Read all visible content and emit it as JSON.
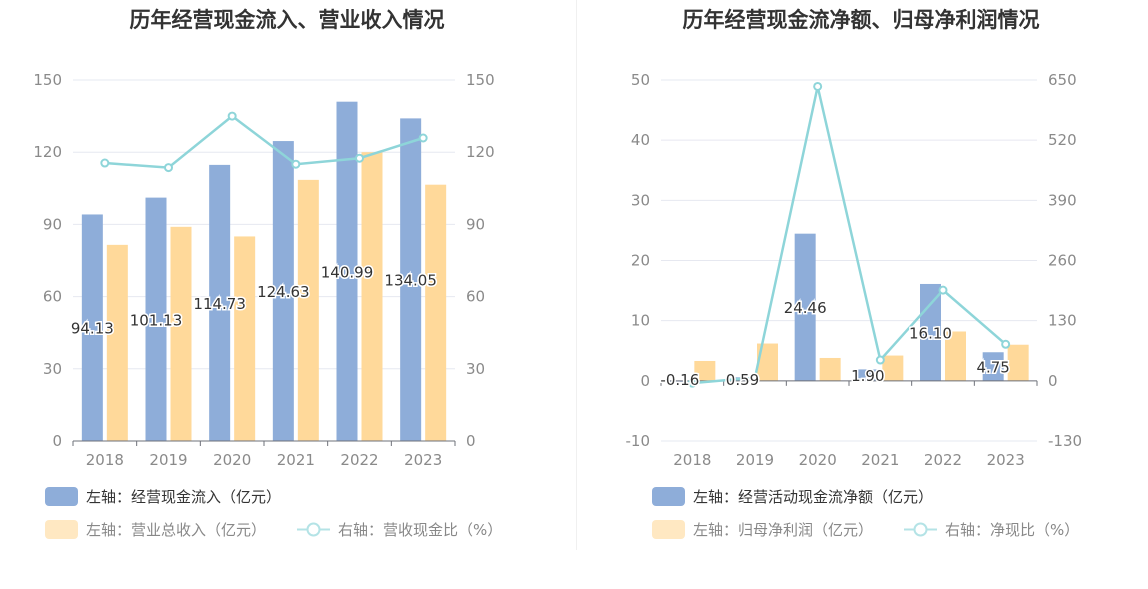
{
  "chart_data": [
    {
      "type": "bar",
      "title": "历年经营现金流入、营业收入情况",
      "categories": [
        "2018",
        "2019",
        "2020",
        "2021",
        "2022",
        "2023"
      ],
      "y_left": {
        "min": 0,
        "max": 150,
        "ticks": [
          "0",
          "30",
          "60",
          "90",
          "120",
          "150"
        ]
      },
      "y_right": {
        "min": 0,
        "max": 150,
        "ticks": [
          "0",
          "30",
          "60",
          "90",
          "120",
          "150"
        ]
      },
      "grid": true,
      "legend_position": "bottom-left",
      "series": [
        {
          "name": "左轴：经营现金流入（亿元）",
          "kind": "bar",
          "axis": "left",
          "color": "#8eadd9",
          "values": [
            94.13,
            101.13,
            114.73,
            124.63,
            140.99,
            134.05
          ],
          "labels": [
            "94.13",
            "101.13",
            "114.73",
            "124.63",
            "140.99",
            "134.05"
          ]
        },
        {
          "name": "左轴：营业总收入（亿元）",
          "kind": "bar",
          "axis": "left",
          "color": "#ffd99a",
          "values": [
            81.5,
            89,
            85,
            108.5,
            120,
            106.5
          ]
        },
        {
          "name": "右轴：营收现金比（%）",
          "kind": "line",
          "axis": "right",
          "color": "#8ed5d9",
          "values": [
            115.5,
            113.6,
            135,
            115,
            117.5,
            125.9
          ]
        }
      ]
    },
    {
      "type": "bar",
      "title": "历年经营现金流净额、归母净利润情况",
      "categories": [
        "2018",
        "2019",
        "2020",
        "2021",
        "2022",
        "2023"
      ],
      "y_left": {
        "min": -10,
        "max": 50,
        "ticks": [
          "-10",
          "0",
          "10",
          "20",
          "30",
          "40",
          "50"
        ]
      },
      "y_right": {
        "min": -130,
        "max": 650,
        "ticks": [
          "-130",
          "0",
          "130",
          "260",
          "390",
          "520",
          "650"
        ]
      },
      "grid": true,
      "legend_position": "bottom-left",
      "series": [
        {
          "name": "左轴：经营活动现金流净额（亿元）",
          "kind": "bar",
          "axis": "left",
          "color": "#8eadd9",
          "values": [
            -0.16,
            0.59,
            24.46,
            1.9,
            16.1,
            4.75
          ],
          "labels": [
            "-0.16",
            "0.59",
            "24.46",
            "1.90",
            "16.10",
            "4.75"
          ]
        },
        {
          "name": "左轴：归母净利润（亿元）",
          "kind": "bar",
          "axis": "left",
          "color": "#ffd99a",
          "values": [
            3.3,
            6.2,
            3.8,
            4.2,
            8.2,
            6.0
          ]
        },
        {
          "name": "右轴：净现比（%）",
          "kind": "line",
          "axis": "right",
          "color": "#8ed5d9",
          "values": [
            -5,
            7,
            636,
            45,
            196,
            79
          ]
        }
      ]
    }
  ]
}
